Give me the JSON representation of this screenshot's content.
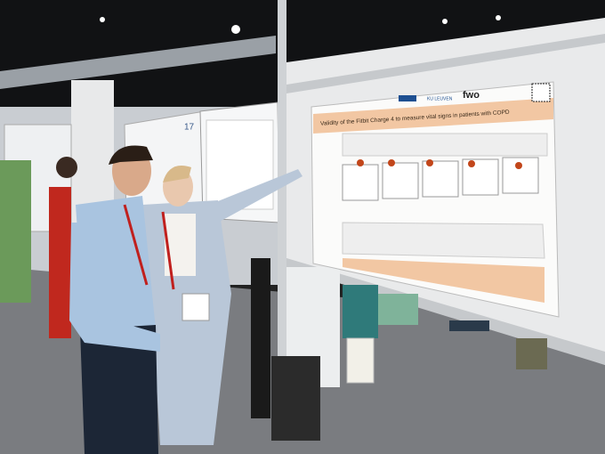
{
  "poster": {
    "institution": "KU LEUVEN",
    "logo": "fwo",
    "title": "Validity of the Fitbit Charge 4 to measure vital signs in patients with COPD"
  },
  "board_number": "17"
}
